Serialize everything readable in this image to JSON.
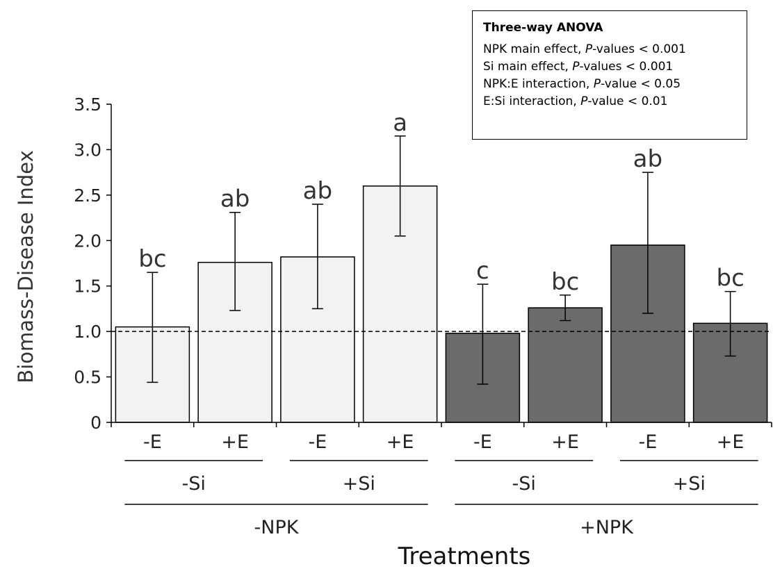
{
  "chart_data": {
    "type": "bar",
    "title": "",
    "xlabel": "Treatments",
    "ylabel": "Biomass-Disease Index",
    "ylim": [
      0,
      3.5
    ],
    "ytick_labels": [
      "0",
      "0.5",
      "1.0",
      "1.5",
      "2.0",
      "2.5",
      "3.0",
      "3.5"
    ],
    "grid": false,
    "reference_line": 1.0,
    "categories": [
      "-E",
      "+E",
      "-E",
      "+E",
      "-E",
      "+E",
      "-E",
      "+E"
    ],
    "values": [
      1.05,
      1.76,
      1.82,
      2.6,
      0.98,
      1.26,
      1.95,
      1.09
    ],
    "error_low": [
      0.44,
      1.23,
      1.25,
      2.05,
      0.42,
      1.12,
      1.2,
      0.73
    ],
    "error_high": [
      1.65,
      2.31,
      2.4,
      3.15,
      1.52,
      1.4,
      2.75,
      1.44
    ],
    "significance_letters": [
      "bc",
      "ab",
      "ab",
      "a",
      "c",
      "bc",
      "ab",
      "bc"
    ],
    "bar_groups": [
      "-NPK",
      "-NPK",
      "-NPK",
      "-NPK",
      "+NPK",
      "+NPK",
      "+NPK",
      "+NPK"
    ],
    "group_colors": {
      "-NPK": "#f2f2f2",
      "+NPK": "#6b6b6b"
    },
    "si_levels": [
      "-Si",
      "+Si",
      "-Si",
      "+Si"
    ],
    "npk_levels": [
      "-NPK",
      "+NPK"
    ],
    "anova": {
      "title": "Three-way ANOVA",
      "lines": [
        {
          "pre": "NPK main effect, ",
          "italic": "P",
          "post": "-values < 0.001"
        },
        {
          "pre": "Si main effect, ",
          "italic": "P",
          "post": "-values < 0.001"
        },
        {
          "pre": "NPK:E interaction, ",
          "italic": "P",
          "post": "-value < 0.05"
        },
        {
          "pre": "E:Si interaction, ",
          "italic": "P",
          "post": "-value < 0.01"
        }
      ]
    }
  }
}
